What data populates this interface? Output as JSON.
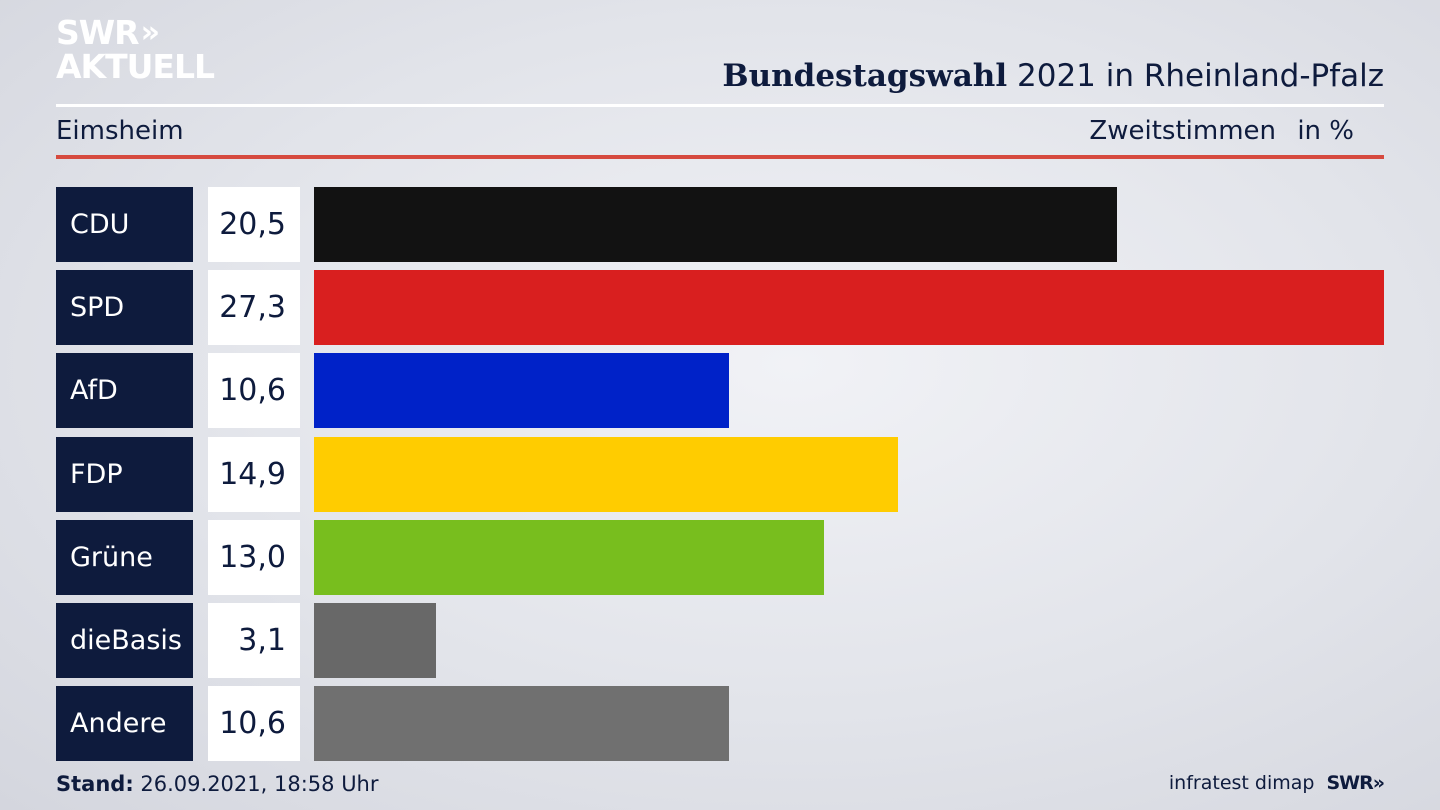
{
  "brand": {
    "line1": "SWR",
    "line2": "AKTUELL",
    "chevrons": "»"
  },
  "header": {
    "title_bold": "Bundestagswahl",
    "title_rest": "2021 in Rheinland-Pfalz",
    "region": "Eimsheim",
    "metric": "Zweitstimmen",
    "unit": "in %"
  },
  "chart_data": {
    "type": "bar",
    "orientation": "horizontal",
    "title": "Bundestagswahl 2021 in Rheinland-Pfalz",
    "subtitle": "Eimsheim — Zweitstimmen in %",
    "categories": [
      "CDU",
      "SPD",
      "AfD",
      "FDP",
      "Grüne",
      "dieBasis",
      "Andere"
    ],
    "values": [
      20.5,
      27.3,
      10.6,
      14.9,
      13.0,
      3.1,
      10.6
    ],
    "value_labels": [
      "20,5",
      "27,3",
      "10,6",
      "14,9",
      "13,0",
      "3,1",
      "10,6"
    ],
    "colors": [
      "#121212",
      "#d91f1f",
      "#0022c8",
      "#ffcc00",
      "#78be1e",
      "#686868",
      "#707070"
    ],
    "xlim": [
      0,
      27.3
    ],
    "grid": false,
    "legend": "none"
  },
  "footer": {
    "stand_label": "Stand:",
    "stand_value": "26.09.2021, 18:58 Uhr",
    "source": "infratest dimap",
    "brand": "SWR»"
  }
}
